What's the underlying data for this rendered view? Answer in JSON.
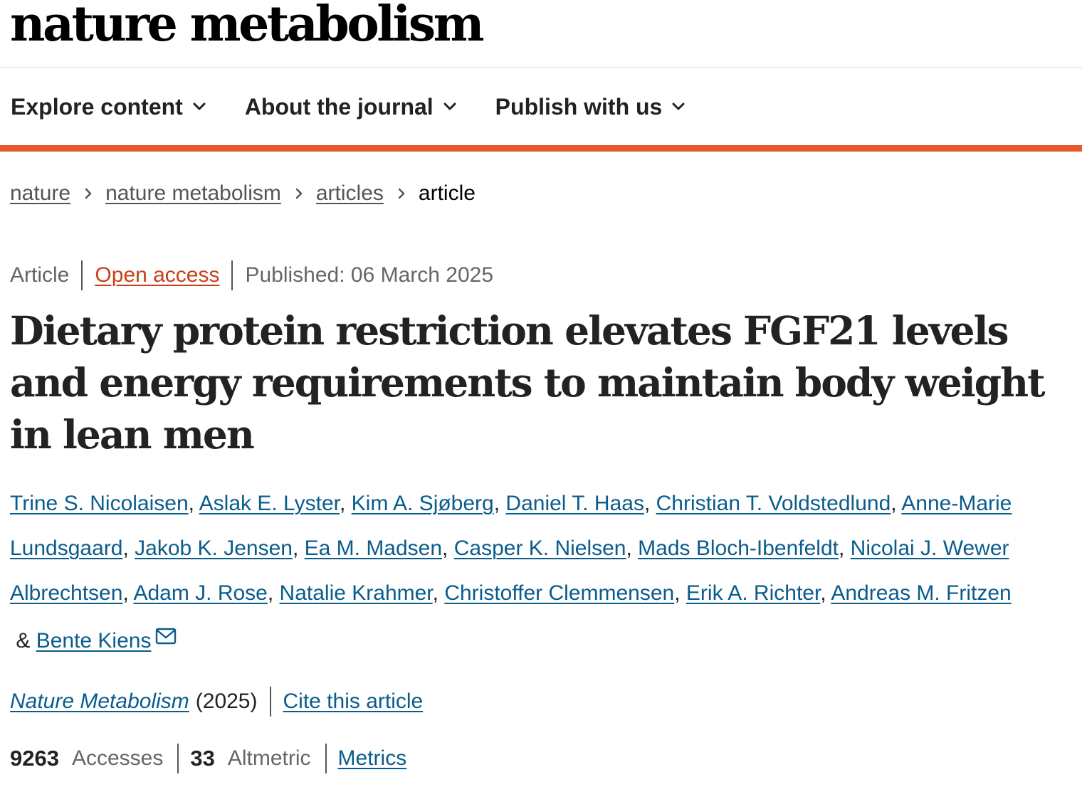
{
  "header": {
    "logo_text": "nature metabolism"
  },
  "nav": {
    "items": [
      {
        "label": "Explore content"
      },
      {
        "label": "About the journal"
      },
      {
        "label": "Publish with us"
      }
    ]
  },
  "colors": {
    "accent": "#e8582e",
    "link": "#0a5c8c",
    "open_access": "#c4411b"
  },
  "breadcrumb": {
    "items": [
      "nature",
      "nature metabolism",
      "articles"
    ],
    "current": "article"
  },
  "article": {
    "type": "Article",
    "access": "Open access",
    "published": "Published: 06 March 2025",
    "title": "Dietary protein restriction elevates FGF21 levels and energy requirements to maintain body weight in lean men",
    "authors": [
      "Trine S. Nicolaisen",
      "Aslak E. Lyster",
      "Kim A. Sjøberg",
      "Daniel T. Haas",
      "Christian T. Voldstedlund",
      "Anne-Marie Lundsgaard",
      "Jakob K. Jensen",
      "Ea M. Madsen",
      "Casper K. Nielsen",
      "Mads Bloch-Ibenfeldt",
      "Nicolai J. Wewer Albrechtsen",
      "Adam J. Rose",
      "Natalie Krahmer",
      "Christoffer Clemmensen",
      "Erik A. Richter",
      "Andreas M. Fritzen",
      "Bente Kiens"
    ],
    "author_separator": ", ",
    "author_last_separator": " & ",
    "journal": "Nature Metabolism",
    "year": "(2025)",
    "cite_label": "Cite this article"
  },
  "metrics": {
    "accesses_count": "9263",
    "accesses_label": "Accesses",
    "altmetric_count": "33",
    "altmetric_label": "Altmetric",
    "metrics_link": "Metrics"
  }
}
